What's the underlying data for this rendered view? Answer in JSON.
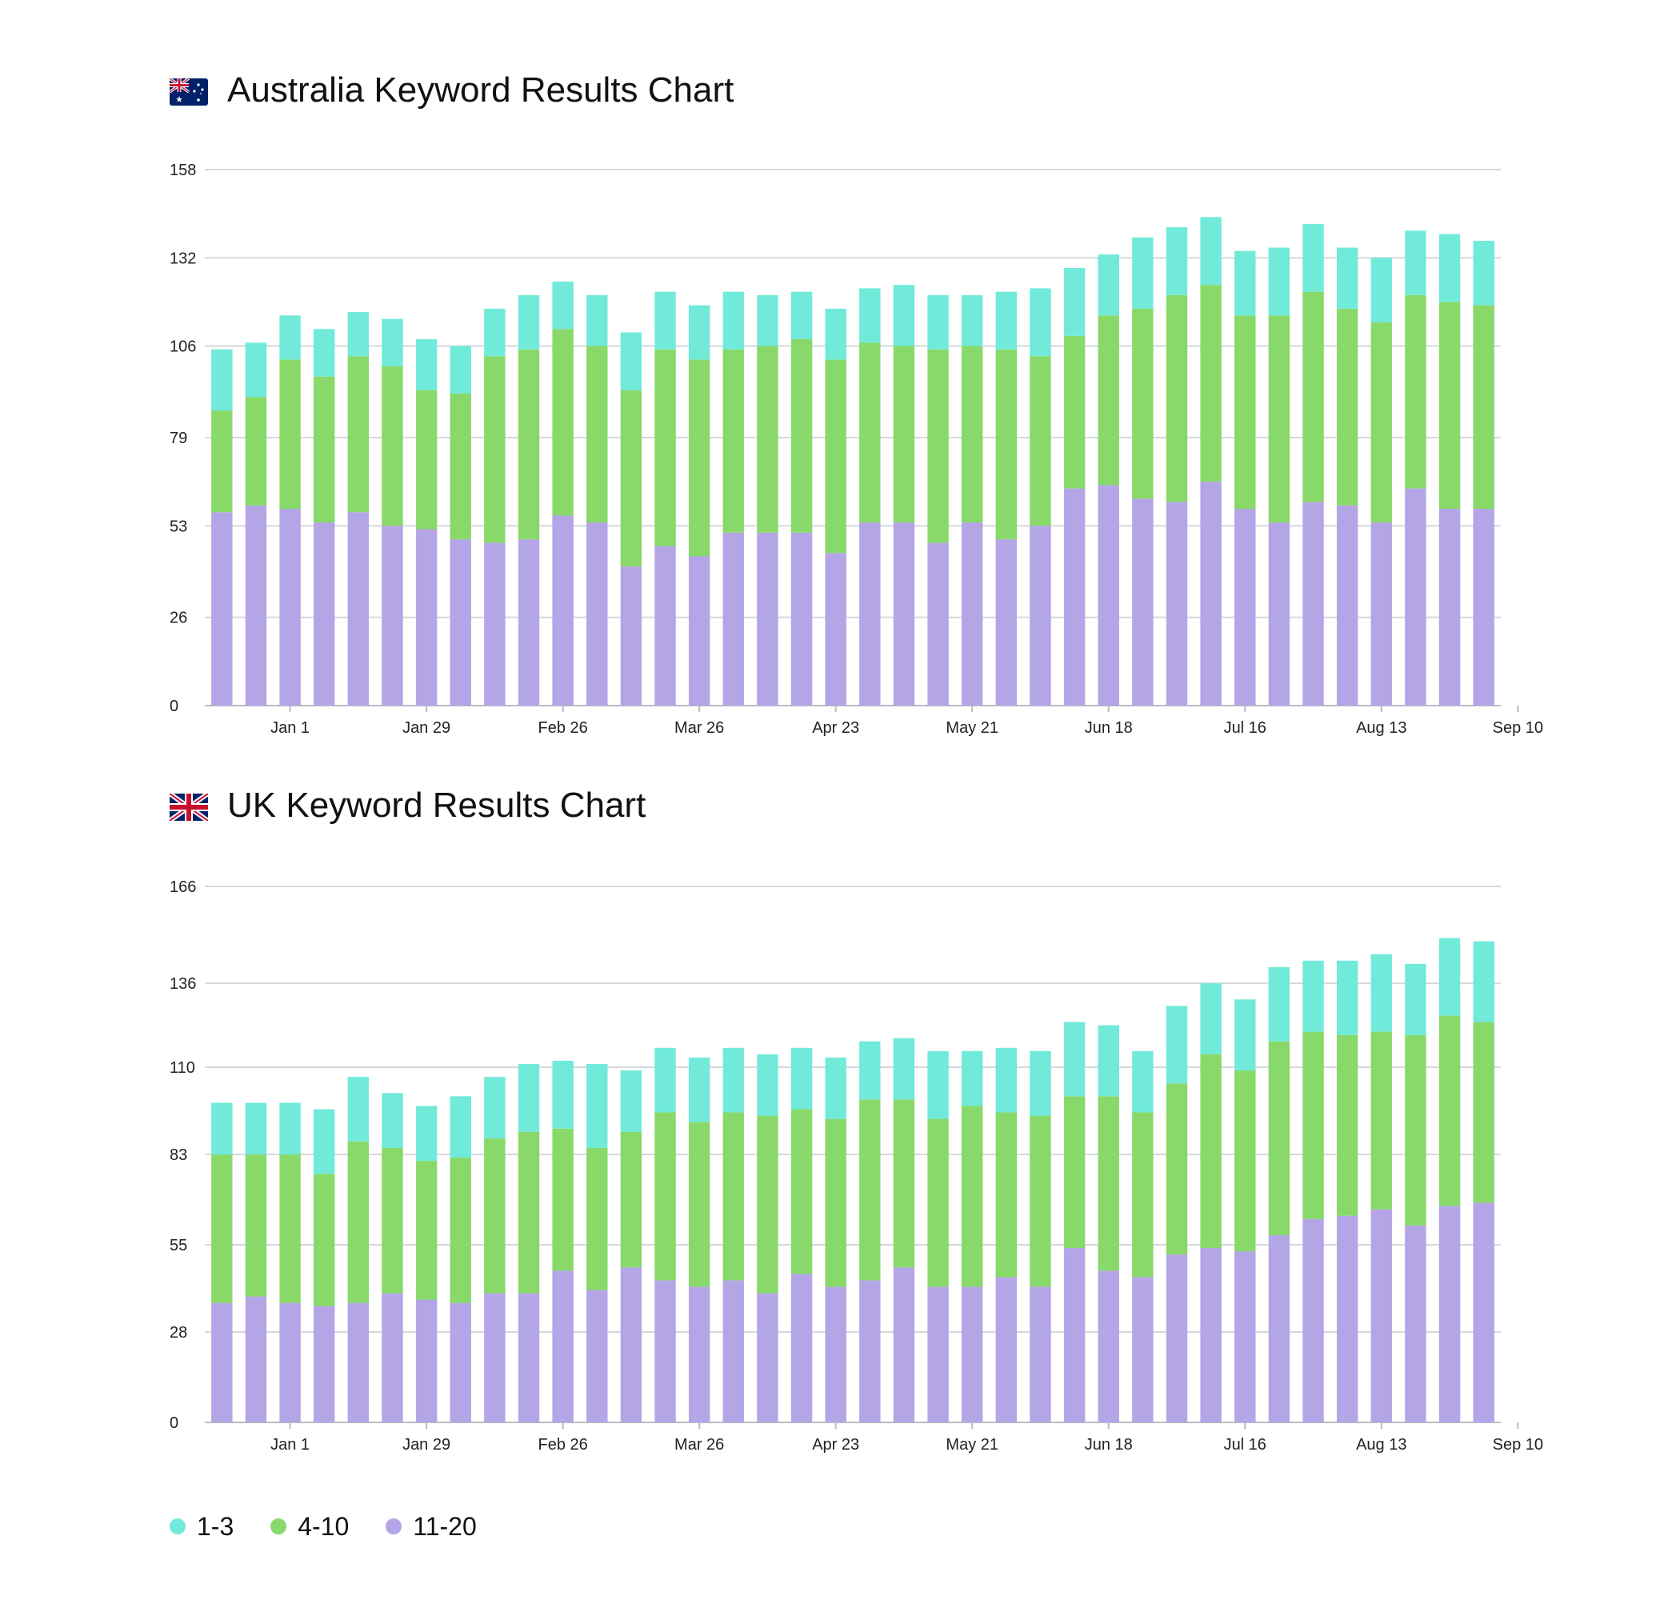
{
  "legend": {
    "items": [
      {
        "label": "1-3",
        "color": "#71eada"
      },
      {
        "label": "4-10",
        "color": "#88d96a"
      },
      {
        "label": "11-20",
        "color": "#b4a5e6"
      }
    ]
  },
  "chart_data": [
    {
      "type": "bar",
      "stacked": true,
      "title": "Australia Keyword Results Chart",
      "flag_icon": "australia-flag-icon",
      "xlabel": "",
      "ylabel": "",
      "yticks": [
        0,
        26,
        53,
        79,
        106,
        132,
        158
      ],
      "ylim": [
        0,
        158
      ],
      "grid": true,
      "x_tick_labels": [
        {
          "index": 2,
          "label": "Jan 1"
        },
        {
          "index": 6,
          "label": "Jan 29"
        },
        {
          "index": 10,
          "label": "Feb 26"
        },
        {
          "index": 14,
          "label": "Mar 26"
        },
        {
          "index": 18,
          "label": "Apr 23"
        },
        {
          "index": 22,
          "label": "May 21"
        },
        {
          "index": 26,
          "label": "Jun 18"
        },
        {
          "index": 30,
          "label": "Jul 16"
        },
        {
          "index": 34,
          "label": "Aug 13"
        },
        {
          "index": 38,
          "label": "Sep 10"
        }
      ],
      "series": [
        {
          "name": "11-20",
          "color": "#b4a5e6",
          "values": [
            57,
            59,
            58,
            54,
            57,
            53,
            52,
            49,
            48,
            49,
            56,
            54,
            41,
            47,
            44,
            51,
            51,
            51,
            45,
            54,
            54,
            48,
            54,
            49,
            53,
            64,
            65,
            61,
            60,
            66,
            58,
            54,
            60,
            59,
            54,
            64,
            58,
            58
          ]
        },
        {
          "name": "4-10",
          "color": "#88d96a",
          "values": [
            30,
            32,
            44,
            43,
            46,
            47,
            41,
            43,
            55,
            56,
            55,
            52,
            52,
            58,
            58,
            54,
            55,
            57,
            57,
            53,
            52,
            57,
            52,
            56,
            50,
            45,
            50,
            56,
            61,
            58,
            57,
            61,
            62,
            58,
            59,
            57,
            61,
            60
          ]
        },
        {
          "name": "1-3",
          "color": "#71eada",
          "values": [
            18,
            16,
            13,
            14,
            13,
            14,
            15,
            14,
            14,
            16,
            14,
            15,
            17,
            17,
            16,
            17,
            15,
            14,
            15,
            16,
            18,
            16,
            15,
            17,
            20,
            20,
            18,
            21,
            20,
            20,
            19,
            20,
            20,
            18,
            19,
            19,
            20,
            19
          ]
        }
      ]
    },
    {
      "type": "bar",
      "stacked": true,
      "title": "UK Keyword Results Chart",
      "flag_icon": "uk-flag-icon",
      "xlabel": "",
      "ylabel": "",
      "yticks": [
        0,
        28,
        55,
        83,
        110,
        136,
        166
      ],
      "ylim": [
        0,
        166
      ],
      "grid": true,
      "x_tick_labels": [
        {
          "index": 2,
          "label": "Jan 1"
        },
        {
          "index": 6,
          "label": "Jan 29"
        },
        {
          "index": 10,
          "label": "Feb 26"
        },
        {
          "index": 14,
          "label": "Mar 26"
        },
        {
          "index": 18,
          "label": "Apr 23"
        },
        {
          "index": 22,
          "label": "May 21"
        },
        {
          "index": 26,
          "label": "Jun 18"
        },
        {
          "index": 30,
          "label": "Jul 16"
        },
        {
          "index": 34,
          "label": "Aug 13"
        },
        {
          "index": 38,
          "label": "Sep 10"
        }
      ],
      "series": [
        {
          "name": "11-20",
          "color": "#b4a5e6",
          "values": [
            37,
            39,
            37,
            36,
            37,
            40,
            38,
            37,
            40,
            40,
            47,
            41,
            48,
            44,
            42,
            44,
            40,
            46,
            42,
            44,
            48,
            42,
            42,
            45,
            42,
            54,
            47,
            45,
            52,
            54,
            53,
            58,
            63,
            64,
            66,
            61,
            67,
            68
          ]
        },
        {
          "name": "4-10",
          "color": "#88d96a",
          "values": [
            46,
            44,
            46,
            41,
            50,
            45,
            43,
            45,
            48,
            50,
            44,
            44,
            42,
            52,
            51,
            52,
            55,
            51,
            52,
            56,
            52,
            52,
            56,
            51,
            53,
            47,
            54,
            51,
            53,
            60,
            56,
            60,
            58,
            56,
            55,
            59,
            59,
            56
          ]
        },
        {
          "name": "1-3",
          "color": "#71eada",
          "values": [
            16,
            16,
            16,
            20,
            20,
            17,
            17,
            19,
            19,
            21,
            21,
            26,
            19,
            20,
            20,
            20,
            19,
            19,
            19,
            18,
            19,
            21,
            17,
            20,
            20,
            23,
            22,
            19,
            24,
            22,
            22,
            23,
            22,
            23,
            24,
            22,
            24,
            25
          ]
        }
      ]
    }
  ]
}
